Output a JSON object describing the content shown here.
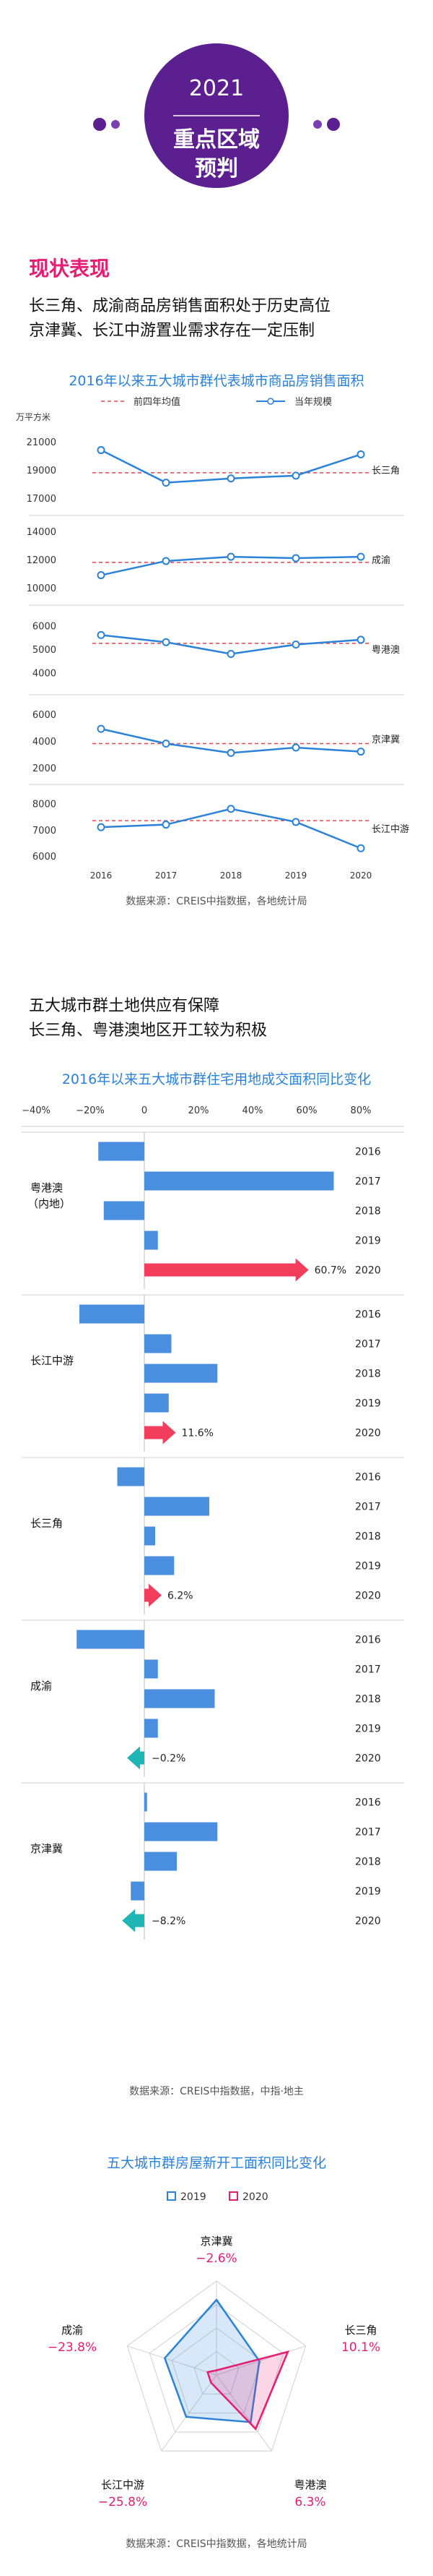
{
  "hero": {
    "year": "2021",
    "line2": "重点区域",
    "line3": "预判"
  },
  "section1": {
    "heading": "现状表现",
    "sub1": "长三角、成渝商品房销售面积处于历史高位",
    "sub2": "京津冀、长江中游置业需求存在一定压制"
  },
  "section2": {
    "sub1": "五大城市群土地供应有保障",
    "sub2": "长三角、粤港澳地区开工较为积极"
  },
  "colors": {
    "accent": "#e61e73",
    "blue": "#2a82d9",
    "bar_blue": "#4a8ee0",
    "red_arrow": "#f23d5c",
    "teal_arrow": "#1fb5b5",
    "purple": "#5b1f8f"
  },
  "chart_data": [
    {
      "type": "line",
      "title": "2016年以来五大城市群代表城市商品房销售面积",
      "unit": "万平方米",
      "legend": [
        "前四年均值",
        "当年规模"
      ],
      "x": [
        "2016",
        "2017",
        "2018",
        "2019",
        "2020"
      ],
      "panels": [
        {
          "name": "长三角",
          "ticks": [
            "21000",
            "19000",
            "17000"
          ],
          "ylim": [
            16500,
            21500
          ],
          "values": [
            20400,
            18100,
            18400,
            18600,
            20100
          ],
          "avg": 18800
        },
        {
          "name": "成渝",
          "ticks": [
            "14000",
            "12000",
            "10000"
          ],
          "ylim": [
            9500,
            14500
          ],
          "values": [
            10900,
            11900,
            12200,
            12100,
            12200
          ],
          "avg": 11800
        },
        {
          "name": "粤港澳",
          "ticks": [
            "6000",
            "5000",
            "4000"
          ],
          "ylim": [
            3500,
            6500
          ],
          "values": [
            5600,
            5300,
            4800,
            5200,
            5400
          ],
          "avg": 5250
        },
        {
          "name": "京津冀",
          "ticks": [
            "6000",
            "4000",
            "2000"
          ],
          "ylim": [
            1500,
            6800
          ],
          "values": [
            4900,
            3800,
            3100,
            3500,
            3200
          ],
          "avg": 3800
        },
        {
          "name": "长江中游",
          "ticks": [
            "8000",
            "7000",
            "6000"
          ],
          "ylim": [
            5700,
            8400
          ],
          "values": [
            7100,
            7200,
            7800,
            7300,
            6300
          ],
          "avg": 7350
        }
      ],
      "source": "数据来源：CREIS中指数据，各地统计局"
    },
    {
      "type": "bar",
      "title": "2016年以来五大城市群住宅用地成交面积同比变化",
      "axis_ticks": [
        "−40%",
        "−20%",
        "0",
        "20%",
        "40%",
        "60%",
        "80%"
      ],
      "xlim": [
        -40,
        80
      ],
      "years": [
        "2016",
        "2017",
        "2018",
        "2019",
        "2020"
      ],
      "groups": [
        {
          "name1": "粤港澳",
          "name2": "（内地）",
          "values": [
            -17,
            70,
            -15,
            5,
            60.7
          ],
          "label2020": "60.7%"
        },
        {
          "name1": "长江中游",
          "name2": "",
          "values": [
            -24,
            10,
            27,
            9,
            11.6
          ],
          "label2020": "11.6%"
        },
        {
          "name1": "长三角",
          "name2": "",
          "values": [
            -10,
            24,
            4,
            11,
            6.2
          ],
          "label2020": "6.2%"
        },
        {
          "name1": "成渝",
          "name2": "",
          "values": [
            -25,
            5,
            26,
            5,
            -0.2
          ],
          "label2020": "−0.2%"
        },
        {
          "name1": "京津冀",
          "name2": "",
          "values": [
            1,
            27,
            12,
            -5,
            -8.2
          ],
          "label2020": "−8.2%"
        }
      ],
      "source": "数据来源：CREIS中指数据，中指·地主"
    },
    {
      "type": "radar",
      "title": "五大城市群房屋新开工面积同比变化",
      "legend": [
        "2019",
        "2020"
      ],
      "axes": [
        {
          "name": "京津冀",
          "value2020": "−2.6%",
          "v2019": 0.8,
          "v2020": 0.05
        },
        {
          "name": "长三角",
          "value2020": "10.1%",
          "v2019": 0.48,
          "v2020": 0.8
        },
        {
          "name": "粤港澳",
          "value2020": "6.3%",
          "v2019": 0.62,
          "v2020": 0.71
        },
        {
          "name": "长江中游",
          "value2020": "−25.8%",
          "v2019": 0.55,
          "v2020": 0.1
        },
        {
          "name": "成渝",
          "value2020": "−23.8%",
          "v2019": 0.58,
          "v2020": 0.1
        }
      ],
      "source": "数据来源：CREIS中指数据，各地统计局"
    }
  ]
}
